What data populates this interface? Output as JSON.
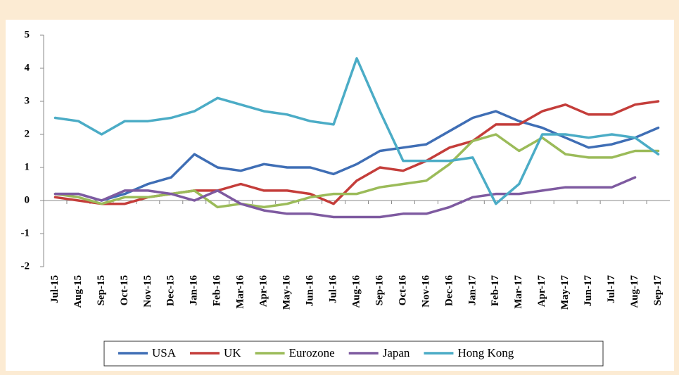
{
  "chart_data": {
    "type": "line",
    "categories": [
      "Jul-15",
      "Aug-15",
      "Sep-15",
      "Oct-15",
      "Nov-15",
      "Dec-15",
      "Jan-16",
      "Feb-16",
      "Mar-16",
      "Apr-16",
      "May-16",
      "Jun-16",
      "Jul-16",
      "Aug-16",
      "Sep-16",
      "Oct-16",
      "Nov-16",
      "Dec-16",
      "Jan-17",
      "Feb-17",
      "Mar-17",
      "Apr-17",
      "May-17",
      "Jun-17",
      "Jul-17",
      "Aug-17",
      "Sep-17"
    ],
    "series": [
      {
        "name": "USA",
        "color": "#3f6eb5",
        "values": [
          0.2,
          0.2,
          0.0,
          0.2,
          0.5,
          0.7,
          1.4,
          1.0,
          0.9,
          1.1,
          1.0,
          1.0,
          0.8,
          1.1,
          1.5,
          1.6,
          1.7,
          2.1,
          2.5,
          2.7,
          2.4,
          2.2,
          1.9,
          1.6,
          1.7,
          1.9,
          2.2
        ]
      },
      {
        "name": "UK",
        "color": "#c43d3a",
        "values": [
          0.1,
          0.0,
          -0.1,
          -0.1,
          0.1,
          0.2,
          0.3,
          0.3,
          0.5,
          0.3,
          0.3,
          0.2,
          -0.1,
          0.6,
          1.0,
          0.9,
          1.2,
          1.6,
          1.8,
          2.3,
          2.3,
          2.7,
          2.9,
          2.6,
          2.6,
          2.9,
          3.0
        ]
      },
      {
        "name": "Eurozone",
        "color": "#9bbb59",
        "values": [
          0.2,
          0.1,
          -0.1,
          0.1,
          0.1,
          0.2,
          0.3,
          -0.2,
          -0.1,
          -0.2,
          -0.1,
          0.1,
          0.2,
          0.2,
          0.4,
          0.5,
          0.6,
          1.1,
          1.8,
          2.0,
          1.5,
          1.9,
          1.4,
          1.3,
          1.3,
          1.5,
          1.5
        ]
      },
      {
        "name": "Japan",
        "color": "#7e5aa0",
        "values": [
          0.2,
          0.2,
          0.0,
          0.3,
          0.3,
          0.2,
          0.0,
          0.3,
          -0.1,
          -0.3,
          -0.4,
          -0.4,
          -0.5,
          -0.5,
          -0.5,
          -0.4,
          -0.4,
          -0.2,
          0.1,
          0.2,
          0.2,
          0.3,
          0.4,
          0.4,
          0.4,
          0.7,
          null
        ]
      },
      {
        "name": "Hong Kong",
        "color": "#4bacc6",
        "values": [
          2.5,
          2.4,
          2.0,
          2.4,
          2.4,
          2.5,
          2.7,
          3.1,
          2.9,
          2.7,
          2.6,
          2.4,
          2.3,
          4.3,
          2.7,
          1.2,
          1.2,
          1.2,
          1.3,
          -0.1,
          0.5,
          2.0,
          2.0,
          1.9,
          2.0,
          1.9,
          1.4
        ]
      }
    ],
    "ylim": [
      -2,
      5
    ],
    "yticks": [
      -2,
      -1,
      0,
      1,
      2,
      3,
      4,
      5
    ],
    "grid": false,
    "legend": "bottom"
  }
}
